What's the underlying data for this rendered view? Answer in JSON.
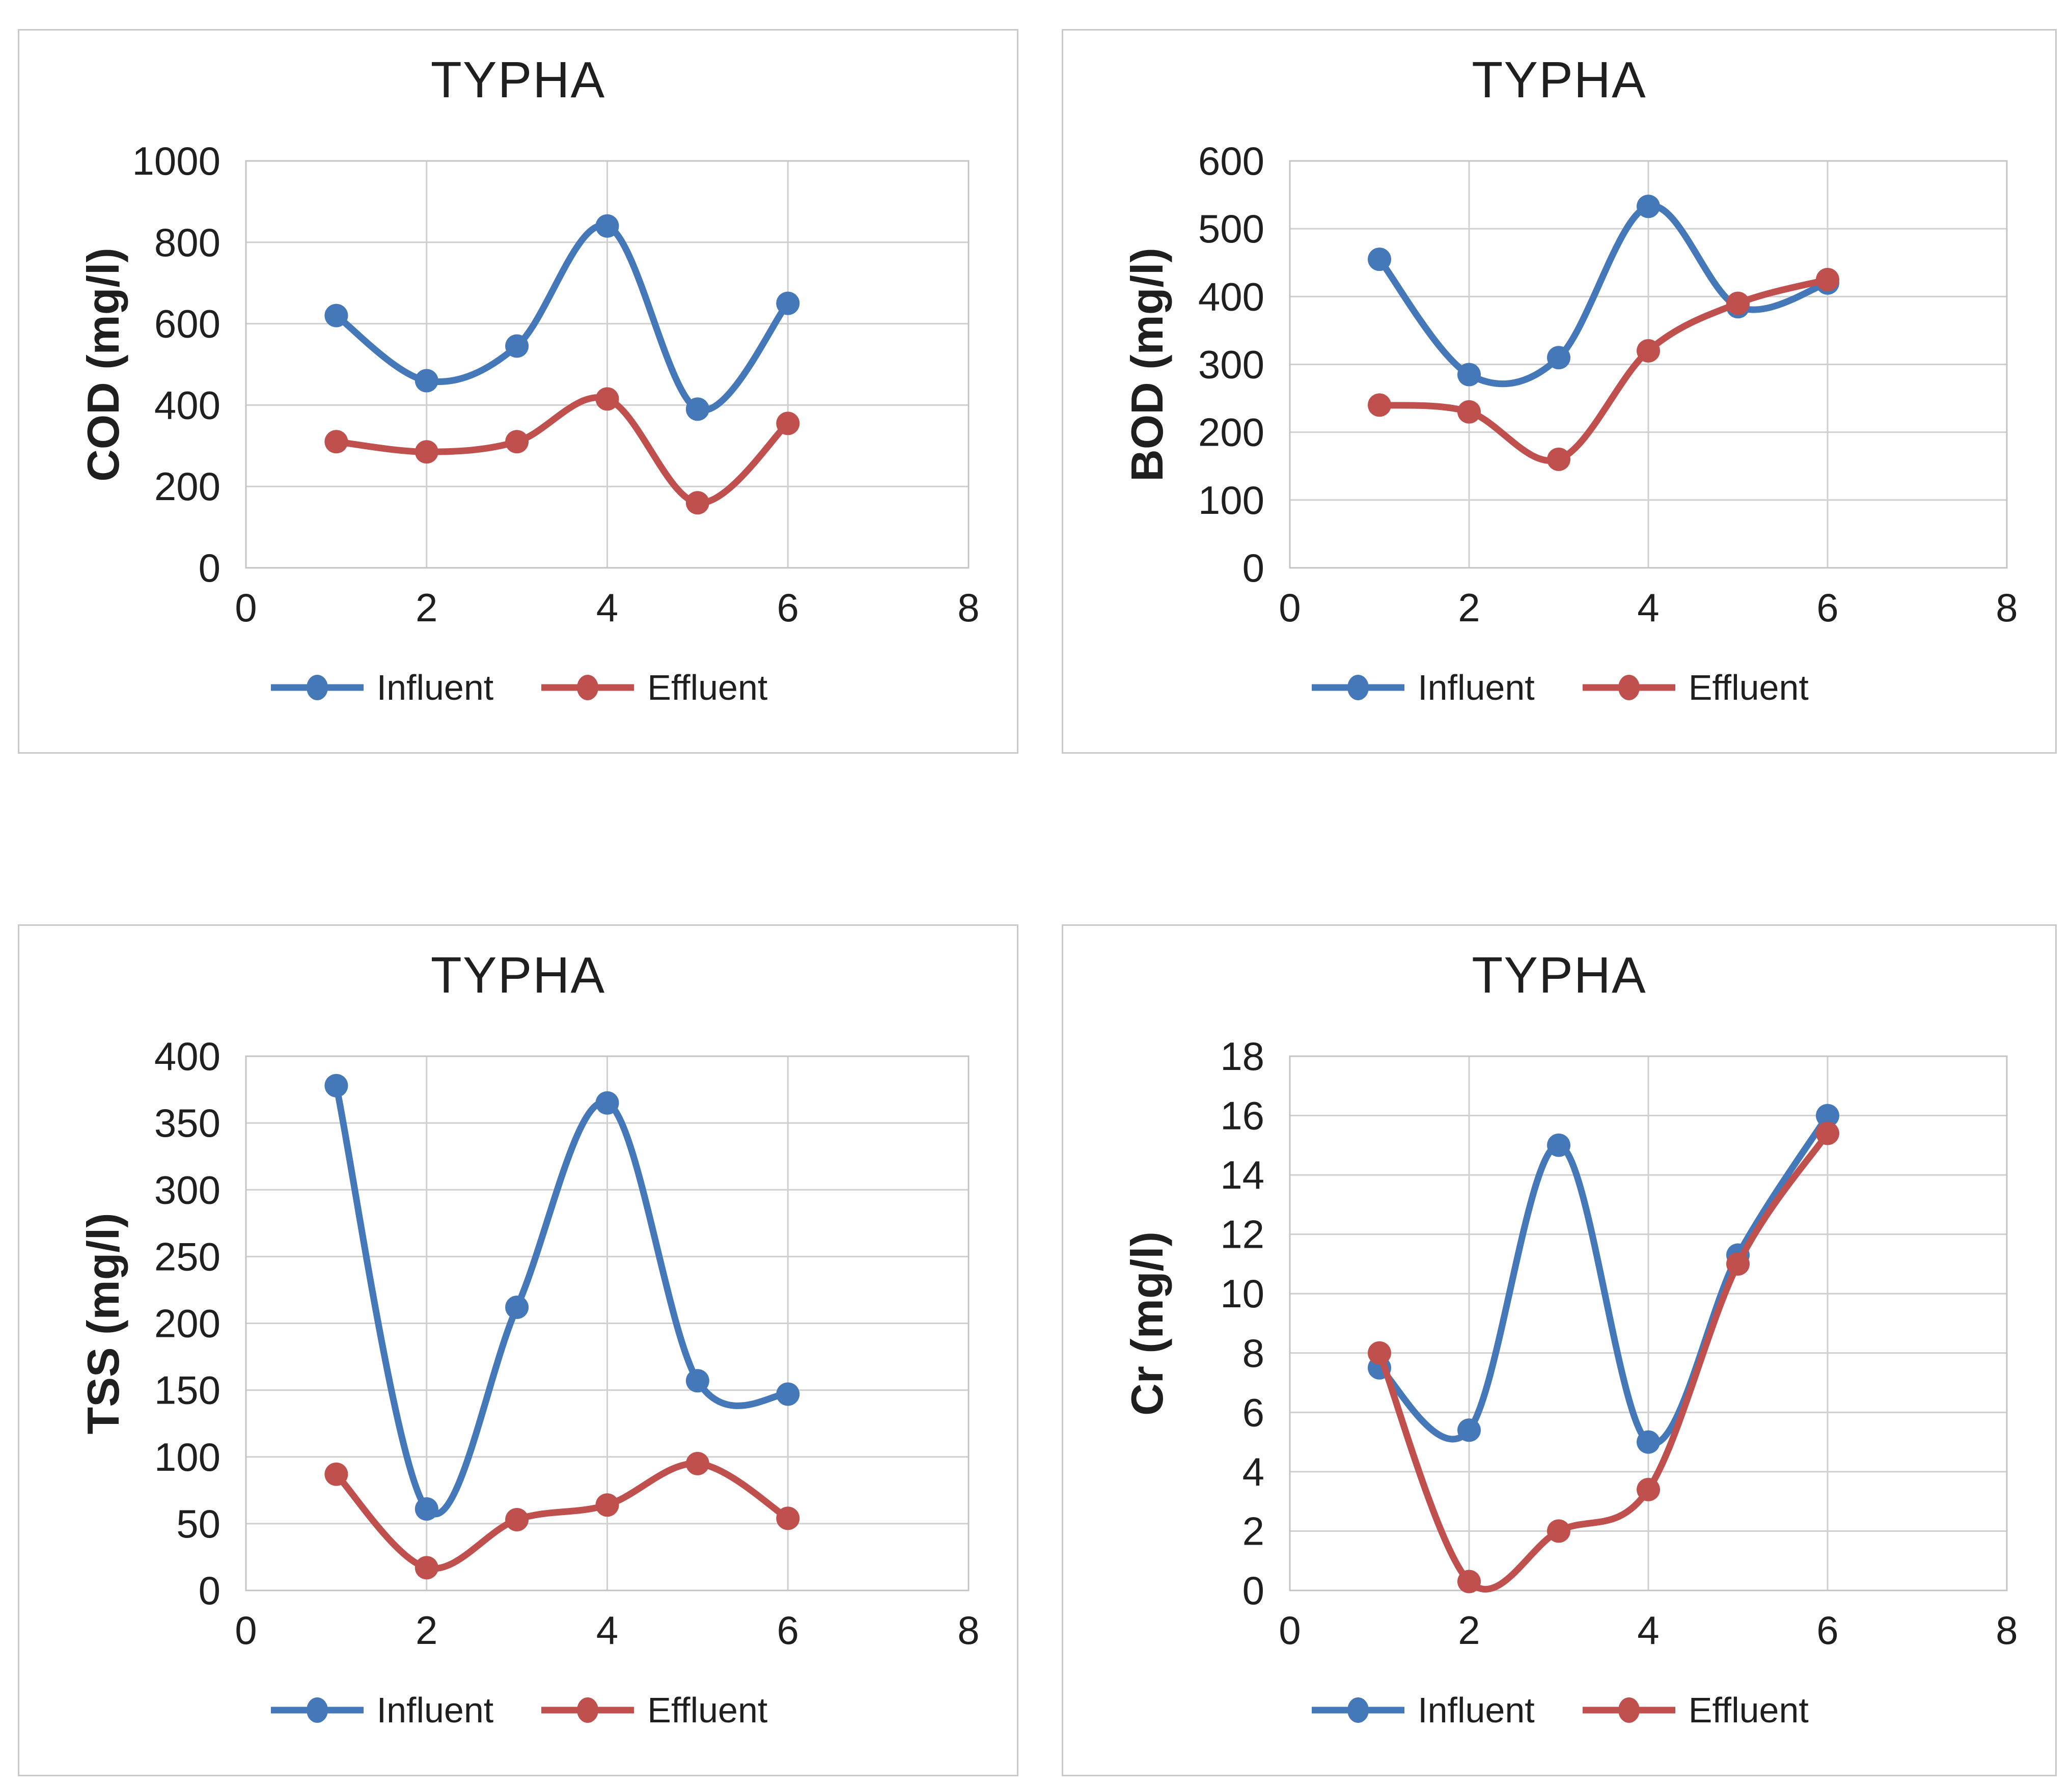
{
  "style": {
    "background": "#ffffff",
    "text_color": "#1f1f1f",
    "gridline_color": "#d0d0d0",
    "plot_border_color": "#c4c4c4",
    "panel_border_color": "#c9c9c9",
    "influent_color": "#4478b8",
    "effluent_color": "#c0504d"
  },
  "chart_data": [
    {
      "type": "line",
      "smooth": true,
      "markers": true,
      "grid": true,
      "legend_position": "bottom",
      "title": "TYPHA",
      "xlabel": "",
      "ylabel": "COD (mg/l)",
      "xlim": [
        0,
        8
      ],
      "ylim": [
        0,
        1000
      ],
      "xticks": [
        0,
        2,
        4,
        6,
        8
      ],
      "yticks": [
        0,
        200,
        400,
        600,
        800,
        1000
      ],
      "x": [
        1,
        2,
        3,
        4,
        5,
        6
      ],
      "series": [
        {
          "name": "Influent",
          "color": "#4478b8",
          "values": [
            620,
            460,
            545,
            840,
            390,
            650
          ]
        },
        {
          "name": "Effluent",
          "color": "#c0504d",
          "values": [
            310,
            285,
            310,
            415,
            160,
            355
          ]
        }
      ]
    },
    {
      "type": "line",
      "smooth": true,
      "markers": true,
      "grid": true,
      "legend_position": "bottom",
      "title": "TYPHA",
      "xlabel": "",
      "ylabel": "BOD (mg/l)",
      "xlim": [
        0,
        8
      ],
      "ylim": [
        0,
        600
      ],
      "xticks": [
        0,
        2,
        4,
        6,
        8
      ],
      "yticks": [
        0,
        100,
        200,
        300,
        400,
        500,
        600
      ],
      "x": [
        1,
        2,
        3,
        4,
        5,
        6
      ],
      "series": [
        {
          "name": "Influent",
          "color": "#4478b8",
          "values": [
            455,
            285,
            310,
            533,
            385,
            420
          ]
        },
        {
          "name": "Effluent",
          "color": "#c0504d",
          "values": [
            240,
            230,
            160,
            320,
            390,
            425
          ]
        }
      ]
    },
    {
      "type": "line",
      "smooth": true,
      "markers": true,
      "grid": true,
      "legend_position": "bottom",
      "title": "TYPHA",
      "xlabel": "",
      "ylabel": "TSS (mg/l)",
      "xlim": [
        0,
        8
      ],
      "ylim": [
        0,
        400
      ],
      "xticks": [
        0,
        2,
        4,
        6,
        8
      ],
      "yticks": [
        0,
        50,
        100,
        150,
        200,
        250,
        300,
        350,
        400
      ],
      "x": [
        1,
        2,
        3,
        4,
        5,
        6
      ],
      "series": [
        {
          "name": "Influent",
          "color": "#4478b8",
          "values": [
            378,
            61,
            212,
            365,
            157,
            147
          ]
        },
        {
          "name": "Effluent",
          "color": "#c0504d",
          "values": [
            87,
            17,
            53,
            64,
            95,
            54
          ]
        }
      ]
    },
    {
      "type": "line",
      "smooth": true,
      "markers": true,
      "grid": true,
      "legend_position": "bottom",
      "title": "TYPHA",
      "xlabel": "",
      "ylabel": "Cr (mg/l)",
      "xlim": [
        0,
        8
      ],
      "ylim": [
        0,
        18
      ],
      "xticks": [
        0,
        2,
        4,
        6,
        8
      ],
      "yticks": [
        0,
        2,
        4,
        6,
        8,
        10,
        12,
        14,
        16,
        18
      ],
      "x": [
        1,
        2,
        3,
        4,
        5,
        6
      ],
      "series": [
        {
          "name": "Influent",
          "color": "#4478b8",
          "values": [
            7.5,
            5.4,
            15,
            5,
            11.3,
            16
          ]
        },
        {
          "name": "Effluent",
          "color": "#c0504d",
          "values": [
            8,
            0.3,
            2,
            3.4,
            11,
            15.4
          ]
        }
      ]
    }
  ]
}
